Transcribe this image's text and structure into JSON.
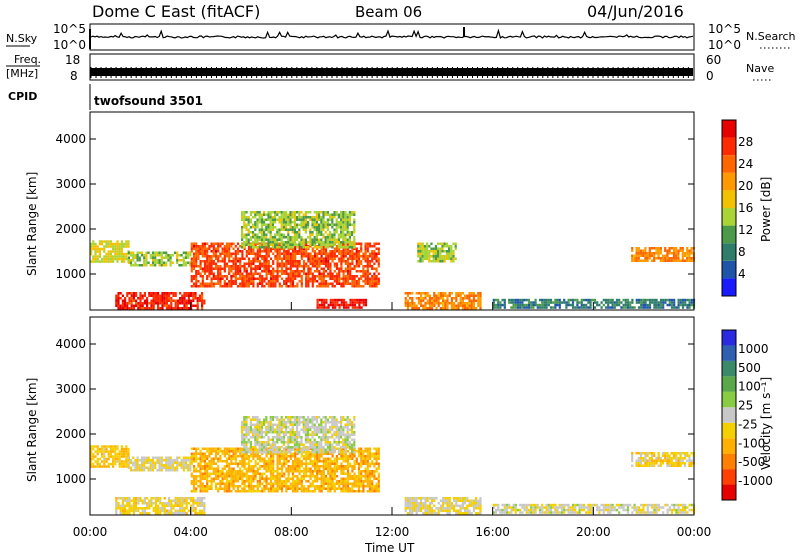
{
  "header": {
    "station": "Dome C East (fitACF)",
    "beam": "Beam 06",
    "date": "04/Jun/2016"
  },
  "sky_panel": {
    "left_label": "N.Sky",
    "left_ticks": [
      "10^5",
      "10^0"
    ],
    "right_ticks": [
      "10^5",
      "10^0"
    ],
    "right_label": "N.Search"
  },
  "freq_panel": {
    "left_label_1": "Freq.",
    "left_label_2": "[MHz]",
    "left_ticks": [
      "18",
      "8"
    ],
    "right_ticks": [
      "60",
      "0"
    ],
    "right_label": "Nave"
  },
  "cpid": {
    "label": "CPID",
    "value": "twofsound 3501"
  },
  "colors": {
    "power_scale": [
      "#1a1aff",
      "#1f55a8",
      "#2e7d6a",
      "#4a9a4a",
      "#a9d435",
      "#f2c200",
      "#ff9900",
      "#ff6600",
      "#ff2a00",
      "#e60000"
    ],
    "velocity_scale": [
      "#2a2ae0",
      "#2f5fb0",
      "#3a8a6a",
      "#5aa84a",
      "#88cc44",
      "#c8c8c8",
      "#f5d000",
      "#ffb000",
      "#ff8000",
      "#ff4000",
      "#e60000"
    ]
  },
  "chart_data": [
    {
      "type": "heatmap",
      "quantity": "power",
      "ylabel": "Slant Range [km]",
      "yticks": [
        "1000",
        "2000",
        "3000",
        "4000"
      ],
      "ylim": [
        200,
        4600
      ],
      "xlim": [
        0,
        24
      ],
      "colorbar_label": "Power [dB]",
      "colorbar_ticks": [
        "4",
        "8",
        "12",
        "16",
        "20",
        "24",
        "28"
      ],
      "colorbar_range": [
        0,
        32
      ],
      "blobs": [
        {
          "x": [
            0.0,
            1.5
          ],
          "y": [
            1250,
            1750
          ],
          "v": 16
        },
        {
          "x": [
            1.5,
            4.0
          ],
          "y": [
            1200,
            1500
          ],
          "v": 14
        },
        {
          "x": [
            4.0,
            11.5
          ],
          "y": [
            700,
            1700
          ],
          "v": 26
        },
        {
          "x": [
            6.0,
            10.5
          ],
          "y": [
            1600,
            2400
          ],
          "v": 14
        },
        {
          "x": [
            1.0,
            4.5
          ],
          "y": [
            250,
            600
          ],
          "v": 28
        },
        {
          "x": [
            9.0,
            11.0
          ],
          "y": [
            250,
            450
          ],
          "v": 29
        },
        {
          "x": [
            12.5,
            15.5
          ],
          "y": [
            250,
            600
          ],
          "v": 22
        },
        {
          "x": [
            13.0,
            14.5
          ],
          "y": [
            1300,
            1700
          ],
          "v": 14
        },
        {
          "x": [
            21.5,
            24.0
          ],
          "y": [
            1300,
            1600
          ],
          "v": 22
        },
        {
          "x": [
            16.0,
            24.0
          ],
          "y": [
            250,
            450
          ],
          "v": 8
        }
      ]
    },
    {
      "type": "heatmap",
      "quantity": "velocity",
      "ylabel": "Slant Range [km]",
      "yticks": [
        "1000",
        "2000",
        "3000",
        "4000"
      ],
      "ylim": [
        200,
        4600
      ],
      "xlim": [
        0,
        24
      ],
      "xticks": [
        "00:00",
        "04:00",
        "08:00",
        "12:00",
        "16:00",
        "20:00",
        "00:00"
      ],
      "xlabel": "Time UT",
      "colorbar_label": "Velocity [m s⁻¹]",
      "colorbar_ticks": [
        "-1000",
        "-500",
        "-100",
        "-25",
        "25",
        "100",
        "500",
        "1000"
      ],
      "blobs": [
        {
          "x": [
            0.0,
            1.5
          ],
          "y": [
            1250,
            1750
          ],
          "v": -300
        },
        {
          "x": [
            1.5,
            4.0
          ],
          "y": [
            1200,
            1500
          ],
          "v": -100
        },
        {
          "x": [
            4.0,
            11.5
          ],
          "y": [
            700,
            1700
          ],
          "v": -400
        },
        {
          "x": [
            6.0,
            10.5
          ],
          "y": [
            1600,
            2400
          ],
          "v": 0
        },
        {
          "x": [
            1.0,
            4.5
          ],
          "y": [
            250,
            600
          ],
          "v": -150
        },
        {
          "x": [
            12.5,
            15.5
          ],
          "y": [
            250,
            600
          ],
          "v": -100
        },
        {
          "x": [
            21.5,
            24.0
          ],
          "y": [
            1300,
            1600
          ],
          "v": -200
        },
        {
          "x": [
            16.0,
            24.0
          ],
          "y": [
            250,
            450
          ],
          "v": -50
        }
      ]
    }
  ]
}
